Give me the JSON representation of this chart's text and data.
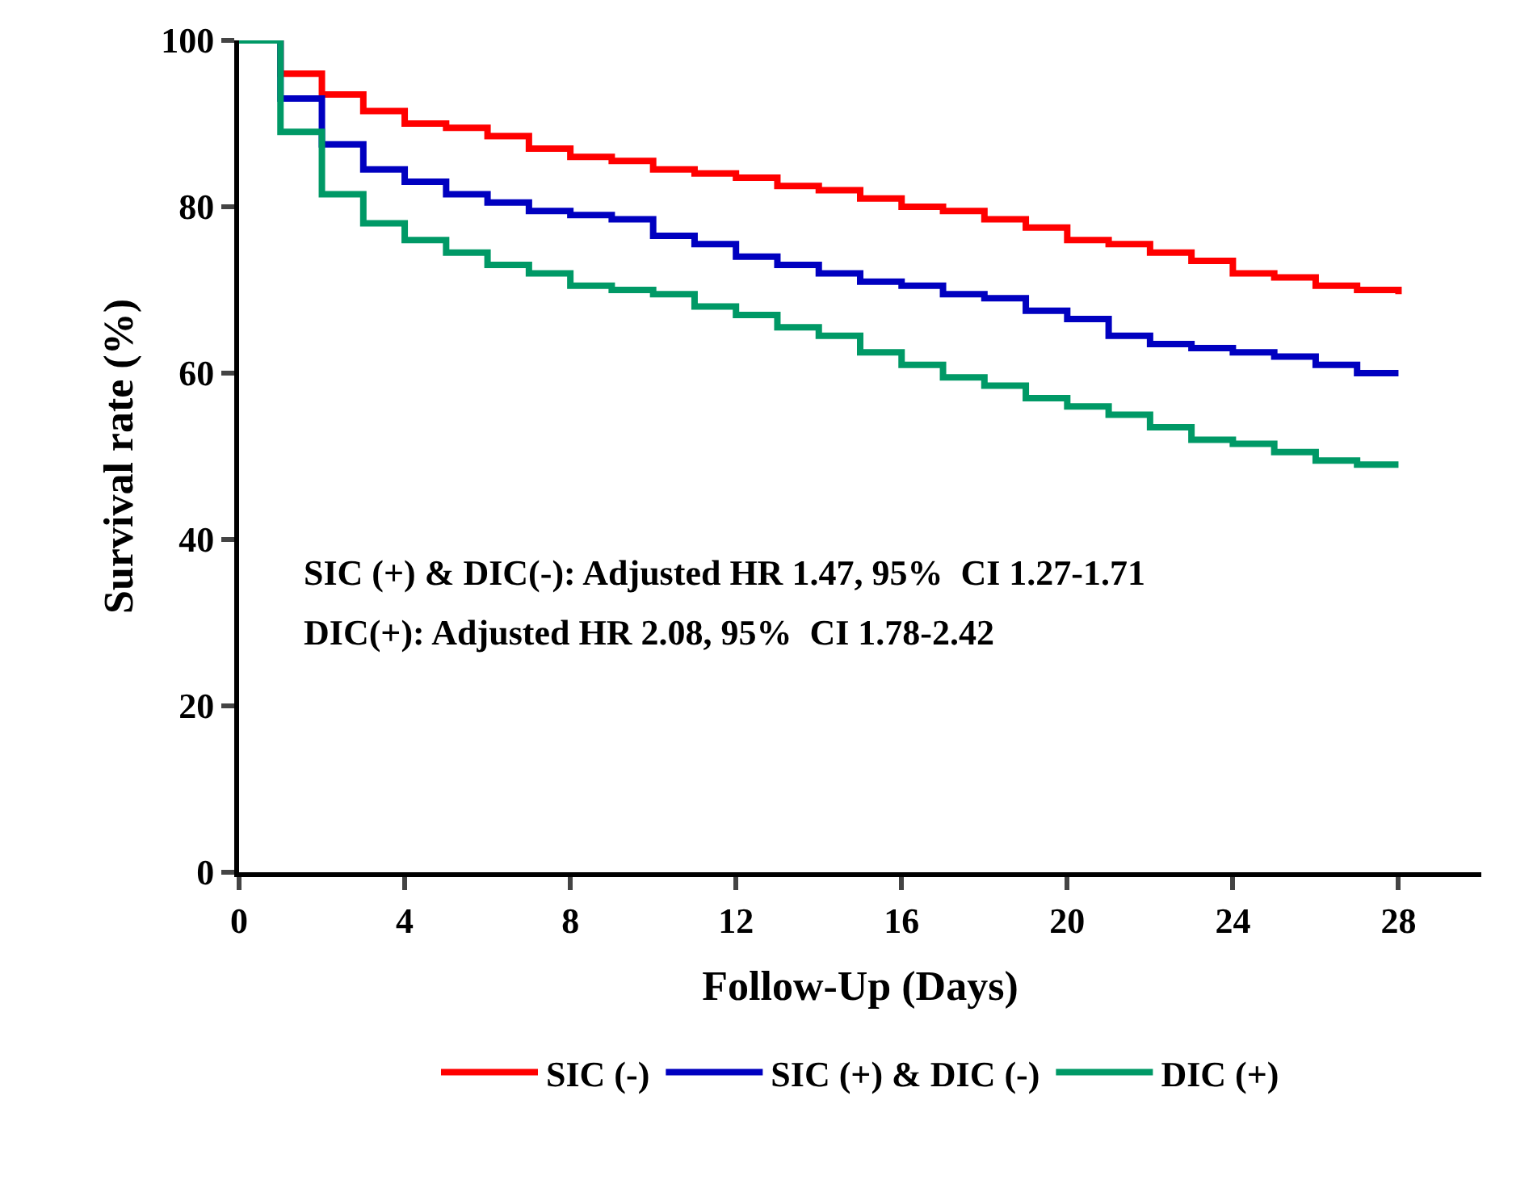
{
  "chart_data": {
    "type": "step",
    "xlabel": "Follow-Up (Days)",
    "ylabel": "Survival rate (%)",
    "x": [
      0,
      1,
      2,
      3,
      4,
      5,
      6,
      7,
      8,
      9,
      10,
      11,
      12,
      13,
      14,
      15,
      16,
      17,
      18,
      19,
      20,
      21,
      22,
      23,
      24,
      25,
      26,
      27,
      28
    ],
    "series": [
      {
        "name": "SIC (-)",
        "color": "#ff0000",
        "values": [
          100,
          96,
          93.5,
          91.5,
          90,
          89.5,
          88.5,
          87,
          86,
          85.5,
          84.5,
          84,
          83.5,
          82.5,
          82,
          81,
          80,
          79.5,
          78.5,
          77.5,
          76,
          75.5,
          74.5,
          73.5,
          72,
          71.5,
          70.5,
          70,
          69.5
        ]
      },
      {
        "name": "SIC (+) & DIC (-)",
        "color": "#0000c0",
        "values": [
          100,
          93,
          87.5,
          84.5,
          83,
          81.5,
          80.5,
          79.5,
          79,
          78.5,
          76.5,
          75.5,
          74,
          73,
          72,
          71,
          70.5,
          69.5,
          69,
          67.5,
          66.5,
          64.5,
          63.5,
          63,
          62.5,
          62,
          61,
          60,
          60
        ]
      },
      {
        "name": "DIC (+)",
        "color": "#009966",
        "values": [
          100,
          89,
          81.5,
          78,
          76,
          74.5,
          73,
          72,
          70.5,
          70,
          69.5,
          68,
          67,
          65.5,
          64.5,
          62.5,
          61,
          59.5,
          58.5,
          57,
          56,
          55,
          53.5,
          52,
          51.5,
          50.5,
          49.5,
          49,
          49
        ]
      }
    ],
    "xlim": [
      0,
      30
    ],
    "xticks": [
      0,
      4,
      8,
      12,
      16,
      20,
      24,
      28
    ],
    "ylim": [
      0,
      100
    ],
    "yticks": [
      0,
      20,
      40,
      60,
      80,
      100
    ],
    "grid": false,
    "legend": "bottom",
    "annotations": [
      "SIC (+) & DIC(-): Adjusted HR 1.47, 95%  CI 1.27-1.71",
      "DIC(+): Adjusted HR 2.08, 95%  CI 1.78-2.42"
    ]
  }
}
